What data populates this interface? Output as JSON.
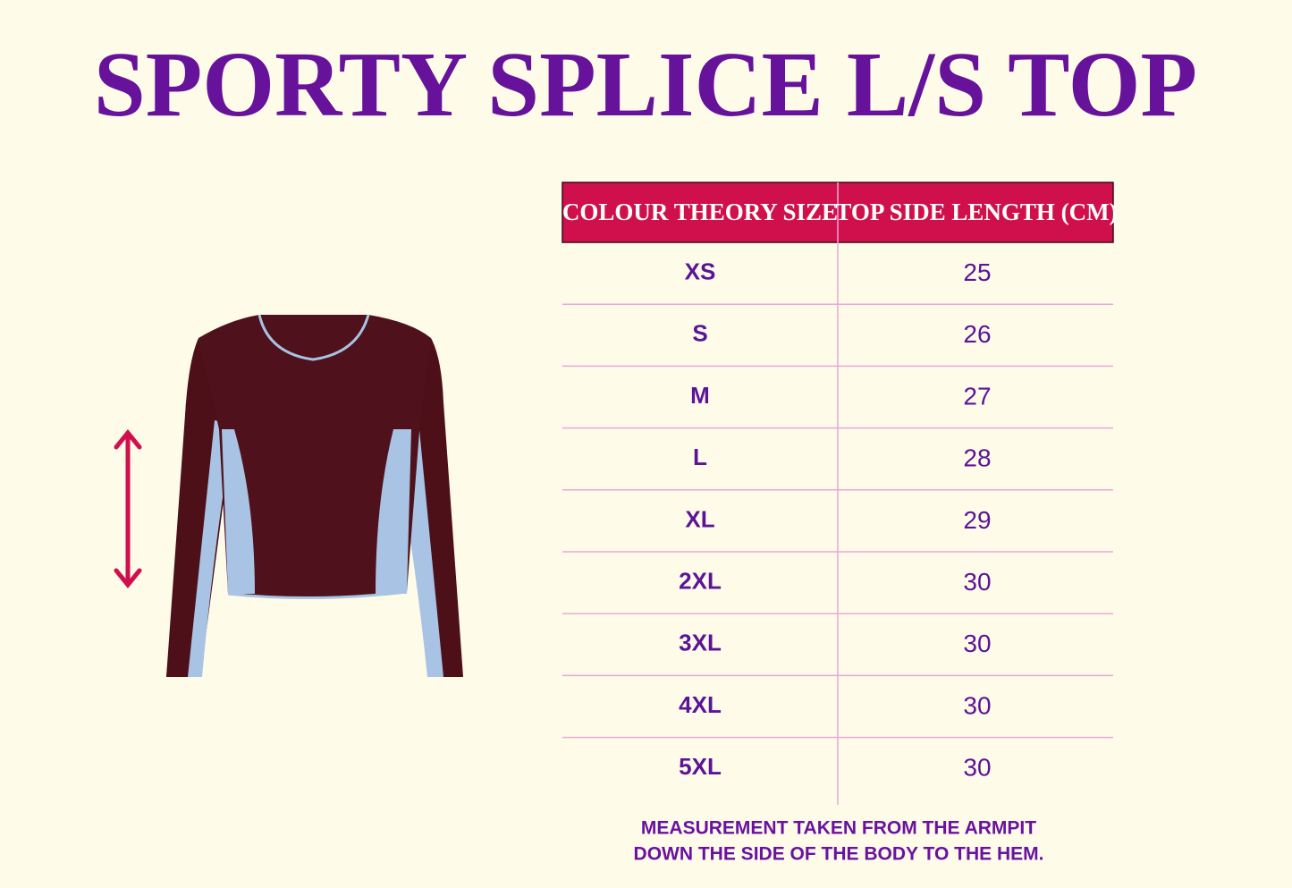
{
  "title": "SPORTY SPLICE L/S TOP",
  "table": {
    "header": [
      "COLOUR THEORY SIZE",
      "TOP SIDE LENGTH (CM)"
    ],
    "rows": [
      [
        "XS",
        25
      ],
      [
        "S",
        26
      ],
      [
        "M",
        27
      ],
      [
        "L",
        28
      ],
      [
        "XL",
        29
      ],
      [
        "2XL",
        30
      ],
      [
        "3XL",
        30
      ],
      [
        "4XL",
        30
      ],
      [
        "5XL",
        30
      ]
    ]
  },
  "note": [
    "MEASUREMENT TAKEN FROM THE ARMPIT",
    "DOWN THE SIDE OF THE BODY TO THE HEM."
  ]
}
